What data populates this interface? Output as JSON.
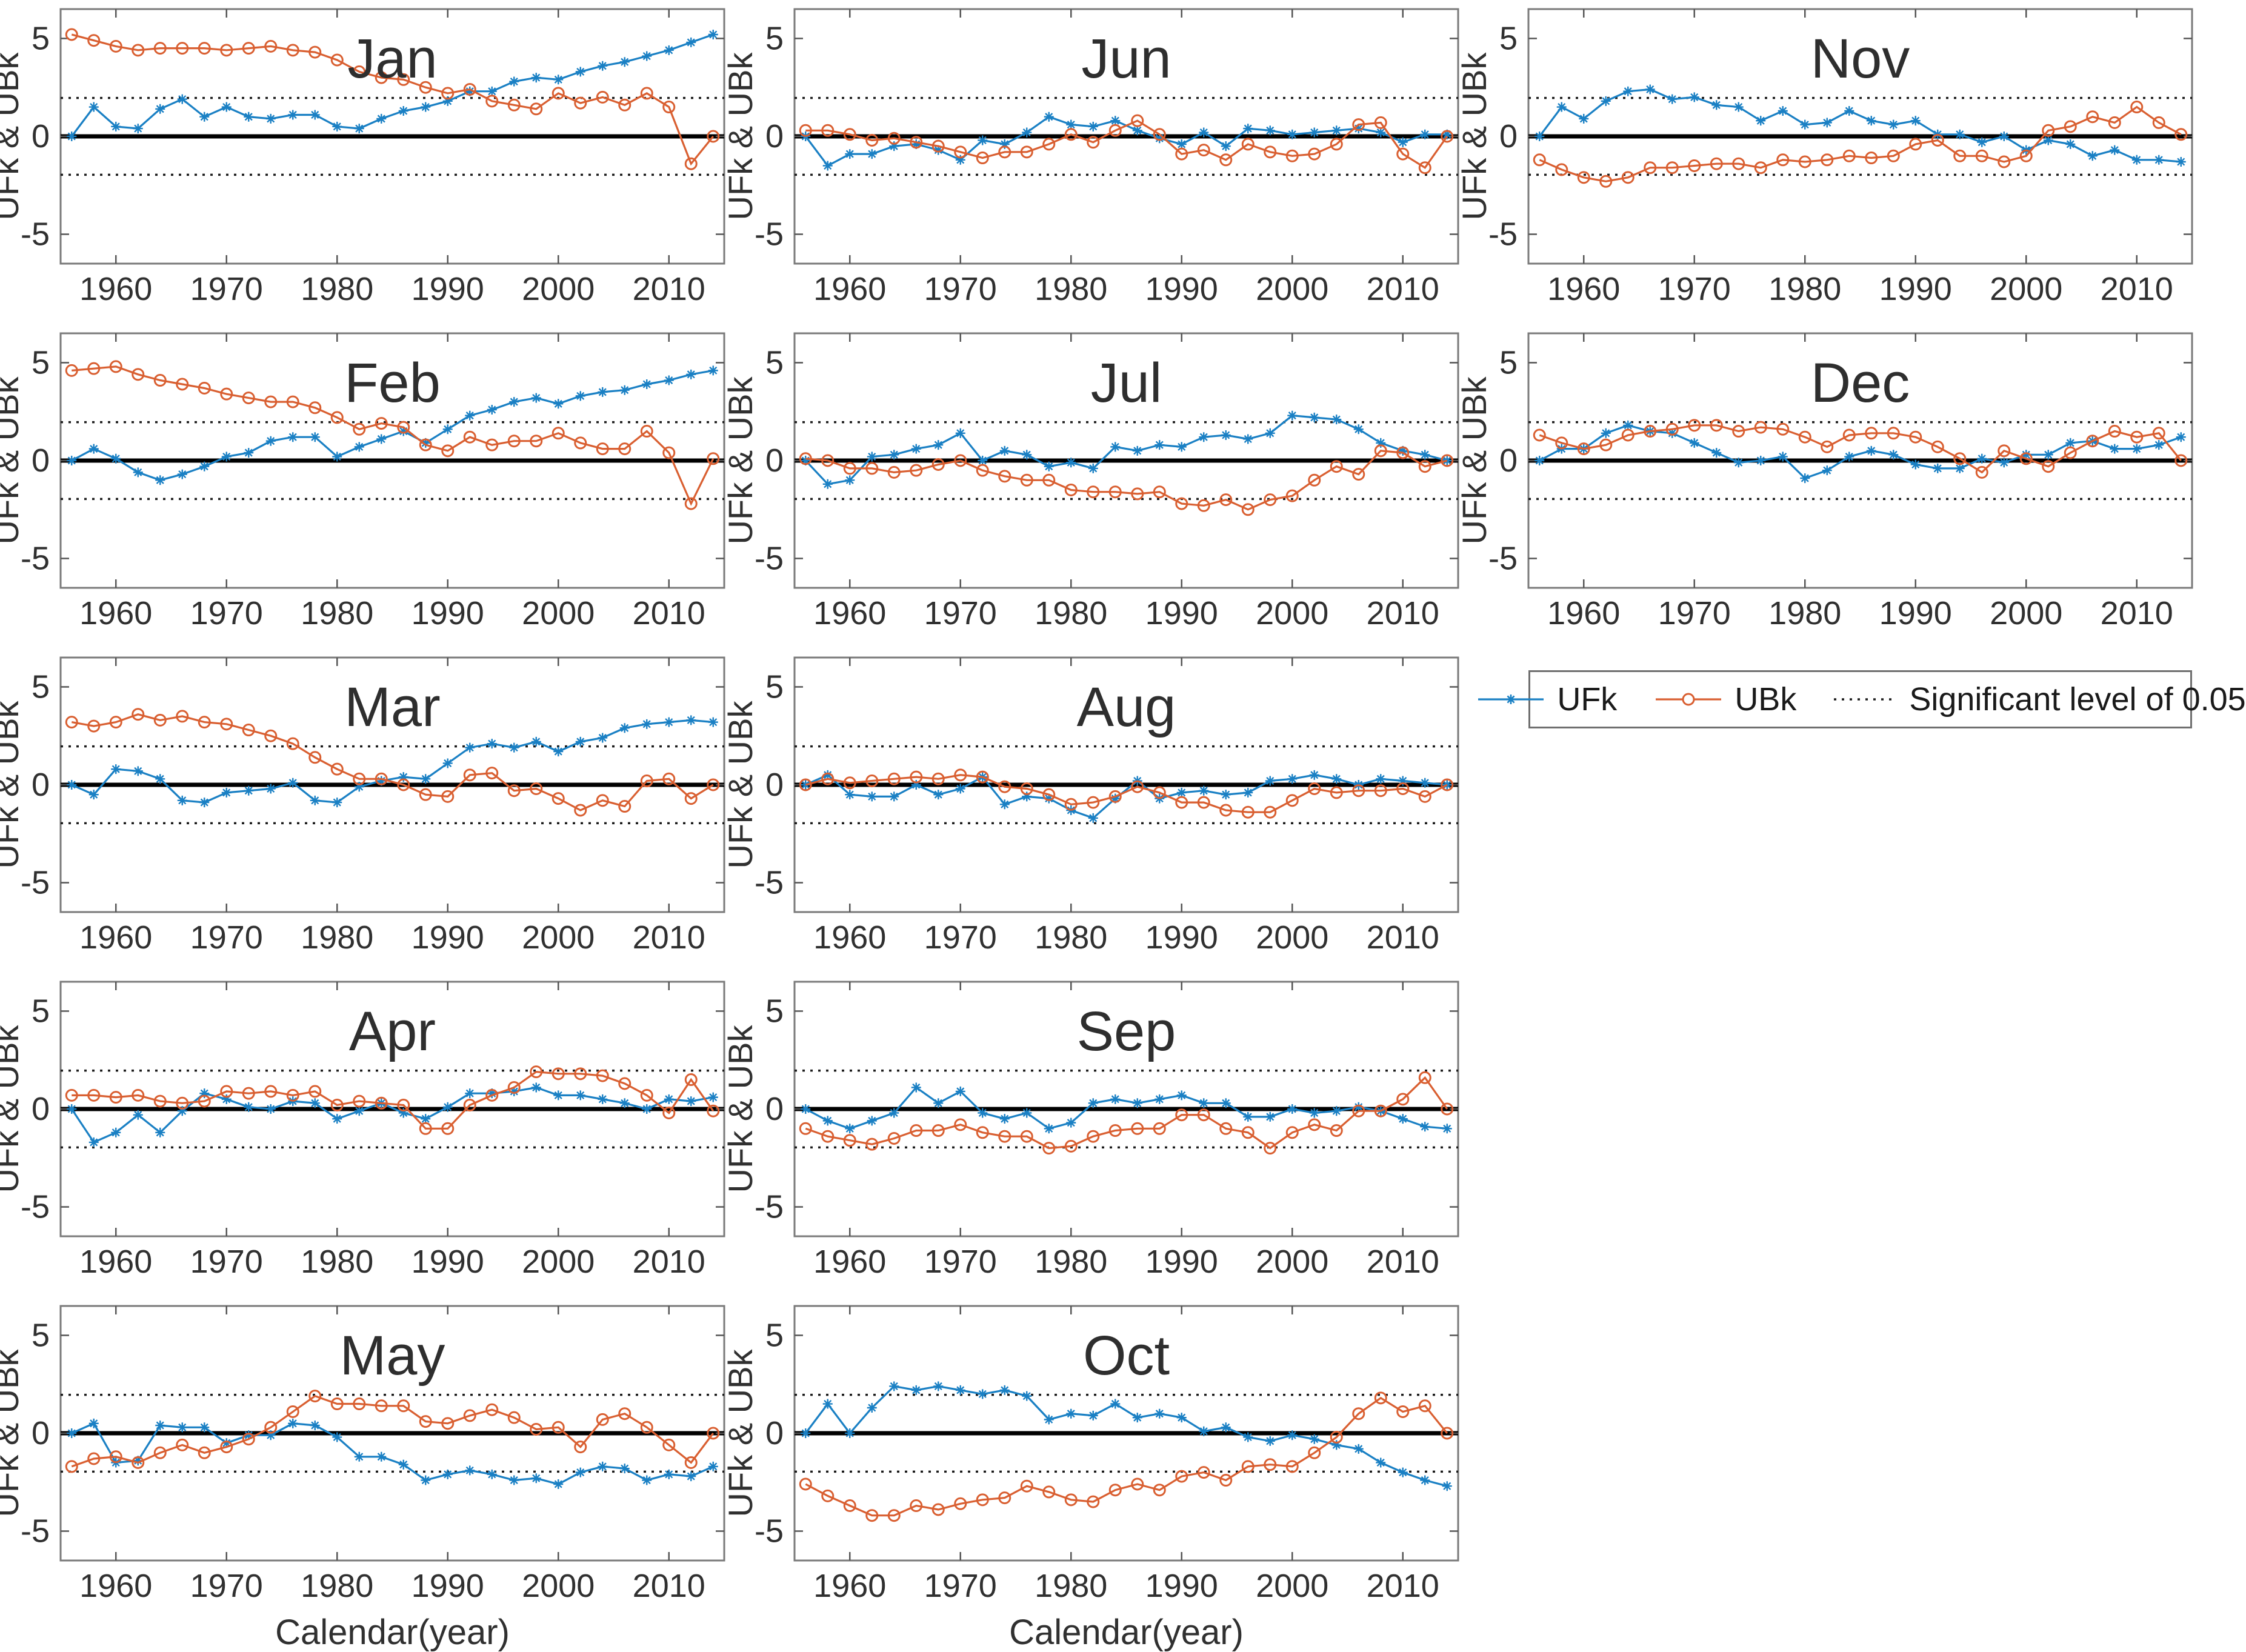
{
  "figure": {
    "ylabel": "UFk & UBk",
    "xlabel": "Calendar(year)",
    "y_ticks": [
      5,
      0,
      -5
    ],
    "x_ticks": [
      1960,
      1970,
      1980,
      1990,
      2000,
      2010
    ],
    "x_range": [
      1955,
      2015
    ],
    "y_range": [
      -6.5,
      6.5
    ],
    "significance_level": 1.96,
    "grid": "off",
    "colors": {
      "ufk": "#1a80c4",
      "ubk": "#d95f31",
      "zero_line": "#000000",
      "dotted": "#1a1a1a",
      "box": "#7a7a7a",
      "tick": "#555555",
      "text": "#303030",
      "title": "#2e2e2e"
    },
    "years": [
      1956,
      1958,
      1960,
      1962,
      1964,
      1966,
      1968,
      1970,
      1972,
      1974,
      1976,
      1978,
      1980,
      1982,
      1984,
      1986,
      1988,
      1990,
      1992,
      1994,
      1996,
      1998,
      2000,
      2002,
      2004,
      2006,
      2008,
      2010,
      2012,
      2014
    ]
  },
  "legend": {
    "ufk_label": "UFk",
    "ubk_label": "UBk",
    "sig_label": "Significant level of 0.05"
  },
  "chart_data": [
    {
      "month": "Jan",
      "type": "line",
      "row": 1,
      "col": 1,
      "show_xlabel": false,
      "series": [
        {
          "name": "UFk",
          "values": [
            0,
            1.5,
            0.5,
            0.4,
            1.4,
            1.9,
            1.0,
            1.5,
            1.0,
            0.9,
            1.1,
            1.1,
            0.5,
            0.4,
            0.9,
            1.3,
            1.5,
            1.8,
            2.3,
            2.3,
            2.8,
            3.0,
            2.9,
            3.3,
            3.6,
            3.8,
            4.1,
            4.4,
            4.8,
            5.2
          ]
        },
        {
          "name": "UBk",
          "values": [
            5.2,
            4.9,
            4.6,
            4.4,
            4.5,
            4.5,
            4.5,
            4.4,
            4.5,
            4.6,
            4.4,
            4.3,
            3.9,
            3.3,
            3.0,
            2.9,
            2.5,
            2.2,
            2.4,
            1.8,
            1.6,
            1.4,
            2.2,
            1.7,
            2.0,
            1.6,
            2.2,
            1.5,
            -1.4,
            0.0
          ]
        }
      ]
    },
    {
      "month": "Jun",
      "type": "line",
      "row": 1,
      "col": 2,
      "show_xlabel": false,
      "series": [
        {
          "name": "UFk",
          "values": [
            0,
            -1.5,
            -0.9,
            -0.9,
            -0.5,
            -0.4,
            -0.7,
            -1.2,
            -0.2,
            -0.4,
            0.2,
            1.0,
            0.6,
            0.5,
            0.8,
            0.3,
            -0.1,
            -0.4,
            0.2,
            -0.5,
            0.4,
            0.3,
            0.1,
            0.2,
            0.3,
            0.4,
            0.2,
            -0.3,
            0.1,
            0.1
          ]
        },
        {
          "name": "UBk",
          "values": [
            0.3,
            0.3,
            0.1,
            -0.2,
            -0.1,
            -0.3,
            -0.5,
            -0.8,
            -1.1,
            -0.8,
            -0.8,
            -0.4,
            0.1,
            -0.3,
            0.3,
            0.8,
            0.1,
            -0.9,
            -0.7,
            -1.2,
            -0.4,
            -0.8,
            -1.0,
            -0.9,
            -0.4,
            0.6,
            0.7,
            -0.9,
            -1.6,
            0.0
          ]
        }
      ]
    },
    {
      "month": "Nov",
      "type": "line",
      "row": 1,
      "col": 3,
      "show_xlabel": false,
      "series": [
        {
          "name": "UFk",
          "values": [
            0,
            1.5,
            0.9,
            1.8,
            2.3,
            2.4,
            1.9,
            2.0,
            1.6,
            1.5,
            0.8,
            1.3,
            0.6,
            0.7,
            1.3,
            0.8,
            0.6,
            0.8,
            0.1,
            0.1,
            -0.3,
            0.0,
            -0.7,
            -0.2,
            -0.4,
            -1.0,
            -0.7,
            -1.2,
            -1.2,
            -1.3
          ]
        },
        {
          "name": "UBk",
          "values": [
            -1.2,
            -1.7,
            -2.1,
            -2.3,
            -2.1,
            -1.6,
            -1.6,
            -1.5,
            -1.4,
            -1.4,
            -1.6,
            -1.2,
            -1.3,
            -1.2,
            -1.0,
            -1.1,
            -1.0,
            -0.4,
            -0.2,
            -1.0,
            -1.0,
            -1.3,
            -1.0,
            0.3,
            0.5,
            1.0,
            0.7,
            1.5,
            0.7,
            0.1
          ]
        }
      ]
    },
    {
      "month": "Feb",
      "type": "line",
      "row": 2,
      "col": 1,
      "show_xlabel": false,
      "series": [
        {
          "name": "UFk",
          "values": [
            0,
            0.6,
            0.1,
            -0.6,
            -1.0,
            -0.7,
            -0.3,
            0.2,
            0.4,
            1.0,
            1.2,
            1.2,
            0.2,
            0.7,
            1.1,
            1.5,
            0.9,
            1.6,
            2.3,
            2.6,
            3.0,
            3.2,
            2.9,
            3.3,
            3.5,
            3.6,
            3.9,
            4.1,
            4.4,
            4.6
          ]
        },
        {
          "name": "UBk",
          "values": [
            4.6,
            4.7,
            4.8,
            4.4,
            4.1,
            3.9,
            3.7,
            3.4,
            3.2,
            3.0,
            3.0,
            2.7,
            2.2,
            1.6,
            1.9,
            1.7,
            0.8,
            0.5,
            1.2,
            0.8,
            1.0,
            1.0,
            1.4,
            0.9,
            0.6,
            0.6,
            1.5,
            0.4,
            -2.2,
            0.1
          ]
        }
      ]
    },
    {
      "month": "Jul",
      "type": "line",
      "row": 2,
      "col": 2,
      "show_xlabel": false,
      "series": [
        {
          "name": "UFk",
          "values": [
            0,
            -1.2,
            -1.0,
            0.2,
            0.3,
            0.6,
            0.8,
            1.4,
            0.0,
            0.5,
            0.3,
            -0.3,
            -0.1,
            -0.4,
            0.7,
            0.5,
            0.8,
            0.7,
            1.2,
            1.3,
            1.1,
            1.4,
            2.3,
            2.2,
            2.1,
            1.6,
            0.9,
            0.5,
            0.3,
            0.0
          ]
        },
        {
          "name": "UBk",
          "values": [
            0.1,
            0.0,
            -0.4,
            -0.4,
            -0.6,
            -0.5,
            -0.2,
            0.0,
            -0.5,
            -0.8,
            -1.0,
            -1.0,
            -1.5,
            -1.6,
            -1.6,
            -1.7,
            -1.6,
            -2.2,
            -2.3,
            -2.0,
            -2.5,
            -2.0,
            -1.8,
            -1.0,
            -0.3,
            -0.7,
            0.5,
            0.4,
            -0.3,
            0.0
          ]
        }
      ]
    },
    {
      "month": "Dec",
      "type": "line",
      "row": 2,
      "col": 3,
      "show_xlabel": false,
      "series": [
        {
          "name": "UFk",
          "values": [
            0,
            0.6,
            0.6,
            1.4,
            1.8,
            1.5,
            1.4,
            0.9,
            0.4,
            -0.1,
            0.0,
            0.2,
            -0.9,
            -0.5,
            0.2,
            0.5,
            0.3,
            -0.2,
            -0.4,
            -0.4,
            0.1,
            -0.1,
            0.3,
            0.3,
            0.9,
            1.0,
            0.6,
            0.6,
            0.8,
            1.2
          ]
        },
        {
          "name": "UBk",
          "values": [
            1.3,
            0.9,
            0.6,
            0.8,
            1.3,
            1.5,
            1.6,
            1.8,
            1.8,
            1.5,
            1.7,
            1.6,
            1.2,
            0.7,
            1.3,
            1.4,
            1.4,
            1.2,
            0.7,
            0.1,
            -0.6,
            0.5,
            0.1,
            -0.3,
            0.4,
            1.0,
            1.5,
            1.2,
            1.4,
            0.0
          ]
        }
      ]
    },
    {
      "month": "Mar",
      "type": "line",
      "row": 3,
      "col": 1,
      "show_xlabel": false,
      "series": [
        {
          "name": "UFk",
          "values": [
            0,
            -0.5,
            0.8,
            0.7,
            0.3,
            -0.8,
            -0.9,
            -0.4,
            -0.3,
            -0.2,
            0.1,
            -0.8,
            -0.9,
            -0.1,
            0.2,
            0.4,
            0.3,
            1.1,
            1.9,
            2.1,
            1.9,
            2.2,
            1.7,
            2.2,
            2.4,
            2.9,
            3.1,
            3.2,
            3.3,
            3.2
          ]
        },
        {
          "name": "UBk",
          "values": [
            3.2,
            3.0,
            3.2,
            3.6,
            3.3,
            3.5,
            3.2,
            3.1,
            2.8,
            2.5,
            2.1,
            1.4,
            0.8,
            0.3,
            0.3,
            0.0,
            -0.5,
            -0.6,
            0.5,
            0.6,
            -0.3,
            -0.2,
            -0.7,
            -1.3,
            -0.8,
            -1.1,
            0.2,
            0.3,
            -0.7,
            0.0
          ]
        }
      ]
    },
    {
      "month": "Aug",
      "type": "line",
      "row": 3,
      "col": 2,
      "show_xlabel": false,
      "series": [
        {
          "name": "UFk",
          "values": [
            0,
            0.5,
            -0.5,
            -0.6,
            -0.6,
            0.0,
            -0.5,
            -0.2,
            0.4,
            -1.0,
            -0.6,
            -0.7,
            -1.3,
            -1.7,
            -0.7,
            0.2,
            -0.7,
            -0.4,
            -0.3,
            -0.5,
            -0.4,
            0.2,
            0.3,
            0.5,
            0.3,
            0.0,
            0.3,
            0.2,
            0.1,
            0.0
          ]
        },
        {
          "name": "UBk",
          "values": [
            0.0,
            0.3,
            0.1,
            0.2,
            0.3,
            0.4,
            0.3,
            0.5,
            0.4,
            -0.1,
            -0.2,
            -0.5,
            -1.0,
            -0.9,
            -0.6,
            -0.1,
            -0.4,
            -0.9,
            -0.9,
            -1.3,
            -1.4,
            -1.4,
            -0.8,
            -0.2,
            -0.4,
            -0.3,
            -0.3,
            -0.2,
            -0.6,
            0.0
          ]
        }
      ]
    },
    {
      "month": "Apr",
      "type": "line",
      "row": 4,
      "col": 1,
      "show_xlabel": false,
      "series": [
        {
          "name": "UFk",
          "values": [
            0,
            -1.7,
            -1.2,
            -0.3,
            -1.2,
            -0.1,
            0.8,
            0.5,
            0.1,
            0.0,
            0.4,
            0.3,
            -0.5,
            -0.1,
            0.3,
            -0.2,
            -0.5,
            0.1,
            0.8,
            0.8,
            0.9,
            1.1,
            0.7,
            0.7,
            0.5,
            0.3,
            0.0,
            0.5,
            0.4,
            0.6
          ]
        },
        {
          "name": "UBk",
          "values": [
            0.7,
            0.7,
            0.6,
            0.7,
            0.4,
            0.3,
            0.4,
            0.9,
            0.8,
            0.9,
            0.7,
            0.9,
            0.2,
            0.4,
            0.3,
            0.2,
            -1.0,
            -1.0,
            0.2,
            0.7,
            1.1,
            1.9,
            1.8,
            1.8,
            1.7,
            1.3,
            0.7,
            -0.2,
            1.5,
            -0.1
          ]
        }
      ]
    },
    {
      "month": "Sep",
      "type": "line",
      "row": 4,
      "col": 2,
      "show_xlabel": false,
      "series": [
        {
          "name": "UFk",
          "values": [
            0,
            -0.6,
            -1.0,
            -0.6,
            -0.2,
            1.1,
            0.3,
            0.9,
            -0.2,
            -0.5,
            -0.2,
            -1.0,
            -0.7,
            0.3,
            0.5,
            0.3,
            0.5,
            0.7,
            0.3,
            0.3,
            -0.4,
            -0.4,
            0.0,
            -0.2,
            -0.1,
            0.1,
            -0.1,
            -0.5,
            -0.9,
            -1.0
          ]
        },
        {
          "name": "UBk",
          "values": [
            -1.0,
            -1.4,
            -1.6,
            -1.8,
            -1.5,
            -1.1,
            -1.1,
            -0.8,
            -1.2,
            -1.4,
            -1.4,
            -2.0,
            -1.9,
            -1.4,
            -1.1,
            -1.0,
            -1.0,
            -0.3,
            -0.3,
            -1.0,
            -1.2,
            -2.0,
            -1.2,
            -0.8,
            -1.1,
            -0.1,
            -0.1,
            0.5,
            1.6,
            0.0
          ]
        }
      ]
    },
    {
      "month": "May",
      "type": "line",
      "row": 5,
      "col": 1,
      "show_xlabel": true,
      "series": [
        {
          "name": "UFk",
          "values": [
            0,
            0.5,
            -1.5,
            -1.4,
            0.4,
            0.3,
            0.3,
            -0.5,
            -0.1,
            -0.1,
            0.5,
            0.4,
            -0.2,
            -1.2,
            -1.2,
            -1.6,
            -2.4,
            -2.1,
            -1.9,
            -2.1,
            -2.4,
            -2.3,
            -2.6,
            -2.0,
            -1.7,
            -1.8,
            -2.4,
            -2.1,
            -2.2,
            -1.7
          ]
        },
        {
          "name": "UBk",
          "values": [
            -1.7,
            -1.3,
            -1.2,
            -1.5,
            -1.0,
            -0.6,
            -1.0,
            -0.7,
            -0.3,
            0.3,
            1.1,
            1.9,
            1.5,
            1.5,
            1.4,
            1.4,
            0.6,
            0.5,
            0.9,
            1.2,
            0.8,
            0.2,
            0.3,
            -0.7,
            0.7,
            1.0,
            0.3,
            -0.6,
            -1.5,
            0.0
          ]
        }
      ]
    },
    {
      "month": "Oct",
      "type": "line",
      "row": 5,
      "col": 2,
      "show_xlabel": true,
      "series": [
        {
          "name": "UFk",
          "values": [
            0,
            1.5,
            0.0,
            1.3,
            2.4,
            2.2,
            2.4,
            2.2,
            2.0,
            2.2,
            1.9,
            0.7,
            1.0,
            0.9,
            1.5,
            0.8,
            1.0,
            0.8,
            0.1,
            0.3,
            -0.2,
            -0.4,
            -0.1,
            -0.3,
            -0.6,
            -0.8,
            -1.5,
            -2.0,
            -2.4,
            -2.7
          ]
        },
        {
          "name": "UBk",
          "values": [
            -2.6,
            -3.2,
            -3.7,
            -4.2,
            -4.2,
            -3.7,
            -3.9,
            -3.6,
            -3.4,
            -3.3,
            -2.7,
            -3.0,
            -3.4,
            -3.5,
            -2.9,
            -2.6,
            -2.9,
            -2.2,
            -2.0,
            -2.4,
            -1.7,
            -1.6,
            -1.7,
            -1.0,
            -0.2,
            1.0,
            1.8,
            1.1,
            1.4,
            0.0
          ]
        }
      ]
    }
  ]
}
